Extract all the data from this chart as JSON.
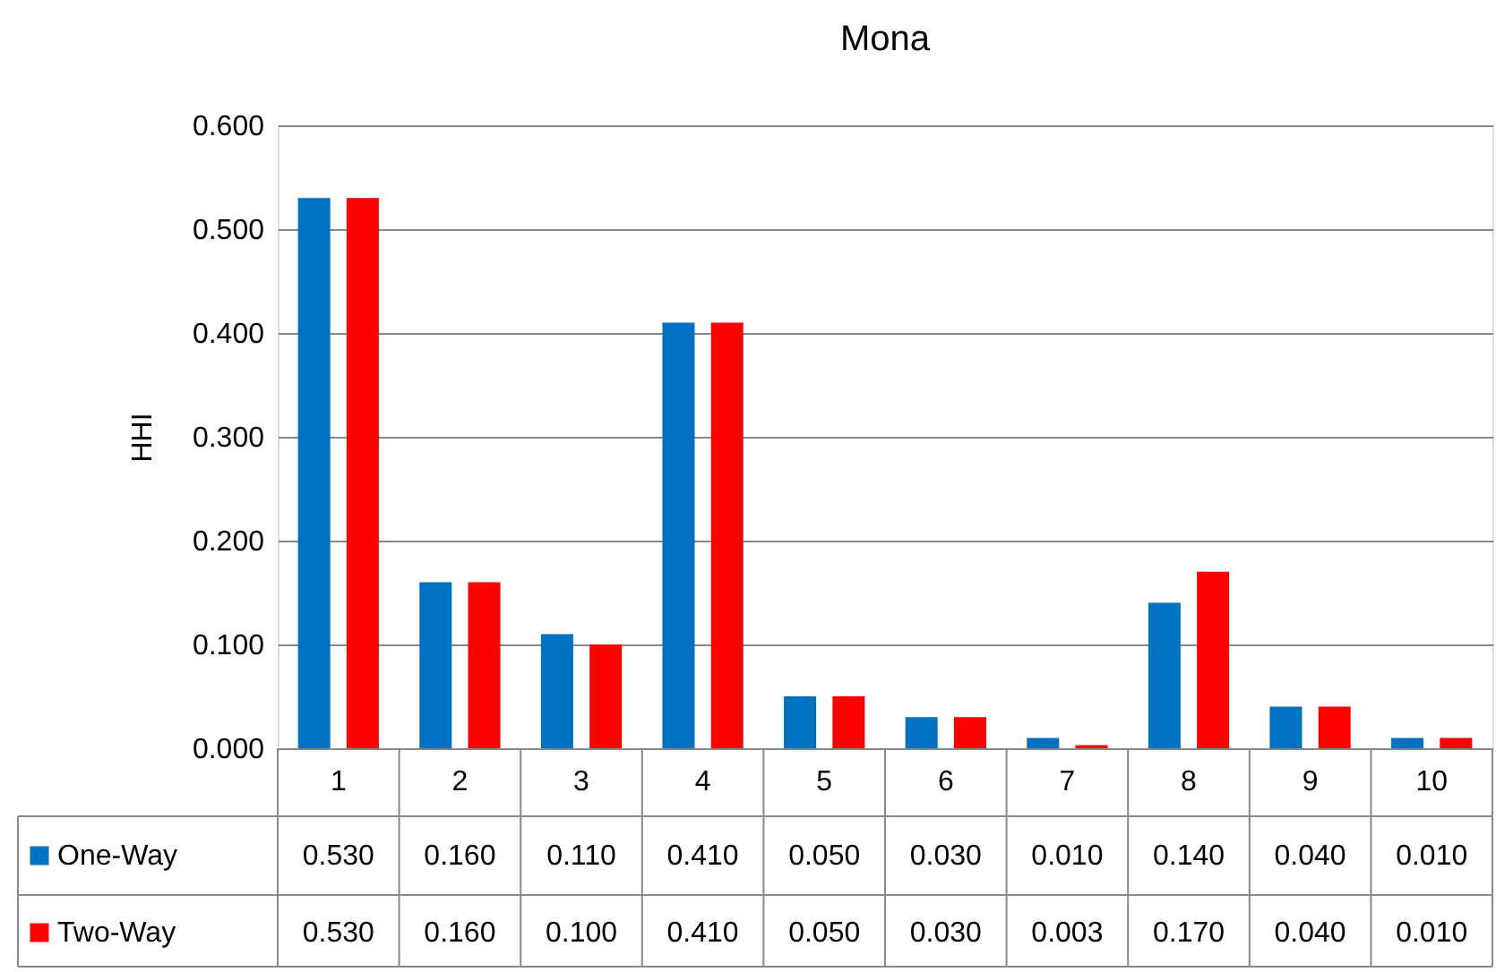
{
  "chart_data": {
    "type": "bar",
    "title": "Mona",
    "ylabel": "HHI",
    "categories": [
      "1",
      "2",
      "3",
      "4",
      "5",
      "6",
      "7",
      "8",
      "9",
      "10"
    ],
    "series": [
      {
        "name": "One-Way",
        "color": "#0070c0",
        "values": [
          0.53,
          0.16,
          0.11,
          0.41,
          0.05,
          0.03,
          0.01,
          0.14,
          0.04,
          0.01
        ],
        "value_labels": [
          "0.530",
          "0.160",
          "0.110",
          "0.410",
          "0.050",
          "0.030",
          "0.010",
          "0.140",
          "0.040",
          "0.010"
        ]
      },
      {
        "name": "Two-Way",
        "color": "#ff0000",
        "values": [
          0.53,
          0.16,
          0.1,
          0.41,
          0.05,
          0.03,
          0.003,
          0.17,
          0.04,
          0.01
        ],
        "value_labels": [
          "0.530",
          "0.160",
          "0.100",
          "0.410",
          "0.050",
          "0.030",
          "0.003",
          "0.170",
          "0.040",
          "0.010"
        ]
      }
    ],
    "ylim": [
      0,
      0.6
    ],
    "yticks": [
      {
        "value": 0,
        "label": "0.000"
      },
      {
        "value": 0.1,
        "label": "0.100"
      },
      {
        "value": 0.2,
        "label": "0.200"
      },
      {
        "value": 0.3,
        "label": "0.300"
      },
      {
        "value": 0.4,
        "label": "0.400"
      },
      {
        "value": 0.5,
        "label": "0.500"
      },
      {
        "value": 0.6,
        "label": "0.600"
      }
    ],
    "grid": "y",
    "legend": "bottom"
  }
}
